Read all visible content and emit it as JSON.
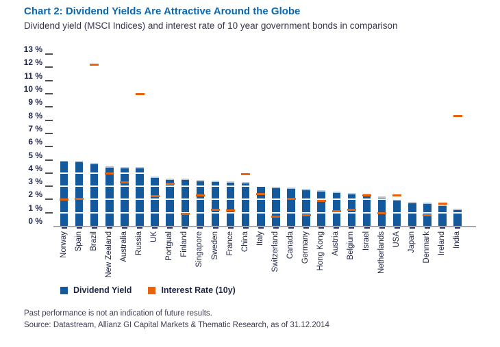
{
  "header": {
    "title": "Chart 2: Dividend Yields Are Attractive Around the Globe",
    "subtitle": "Dividend yield (MSCI Indices) and interest rate of 10 year government bonds in comparison"
  },
  "chart_data": {
    "type": "bar",
    "title": "Chart 2: Dividend Yields Are Attractive Around the Globe",
    "subtitle": "Dividend yield (MSCI Indices) and interest rate of 10 year government bonds in comparison",
    "categories": [
      "Norway",
      "Spain",
      "Brazil",
      "New Zealand",
      "Australia",
      "Russia",
      "UK",
      "Portgual",
      "Finland",
      "Singapore",
      "Sweden",
      "France",
      "China",
      "Italy",
      "Switzerland",
      "Canada",
      "Germany",
      "Hong Kong",
      "Austria",
      "Belgium",
      "Israel",
      "Netherlands",
      "USA",
      "Japan",
      "Denmark",
      "Ireland",
      "India"
    ],
    "series": [
      {
        "name": "Dividend Yield",
        "render": "bar",
        "color": "#15599d",
        "values": [
          4.95,
          4.9,
          4.75,
          4.5,
          4.45,
          4.45,
          3.75,
          3.6,
          3.6,
          3.45,
          3.4,
          3.35,
          3.3,
          3.05,
          2.95,
          2.9,
          2.8,
          2.7,
          2.6,
          2.5,
          2.45,
          2.25,
          2.0,
          1.8,
          1.75,
          1.6,
          1.3
        ]
      },
      {
        "name": "Interest Rate (10y)",
        "render": "dash-marker",
        "color": "#e8640c",
        "values": [
          2.0,
          2.05,
          12.2,
          3.95,
          3.3,
          10.0,
          2.25,
          3.2,
          0.9,
          2.3,
          1.2,
          1.15,
          3.9,
          2.4,
          0.7,
          2.05,
          0.8,
          1.9,
          1.1,
          1.2,
          2.3,
          0.95,
          2.3,
          null,
          0.8,
          1.7,
          8.3
        ]
      }
    ],
    "xlabel": "",
    "ylabel": "",
    "ylim": [
      0,
      13
    ],
    "ytick_step": 1,
    "ytick_suffix": " %",
    "grid": "horizontal white gridlines visible across bars",
    "legend_position": "bottom-left"
  },
  "legend": {
    "items": [
      {
        "label": "Dividend Yield",
        "color": "#15599d"
      },
      {
        "label": "Interest Rate (10y)",
        "color": "#e8640c"
      }
    ]
  },
  "footer": {
    "disclaimer": "Past performance is not an indication of future results.",
    "source": "Source: Datastream, Allianz GI Capital Markets & Thematic Research, as of 31.12.2014"
  },
  "colors": {
    "title_blue": "#0968b0",
    "bar_blue": "#15599d",
    "marker_orange": "#e8640c",
    "axis_gray": "#a5a7aa",
    "text_navy": "#1f2544"
  }
}
